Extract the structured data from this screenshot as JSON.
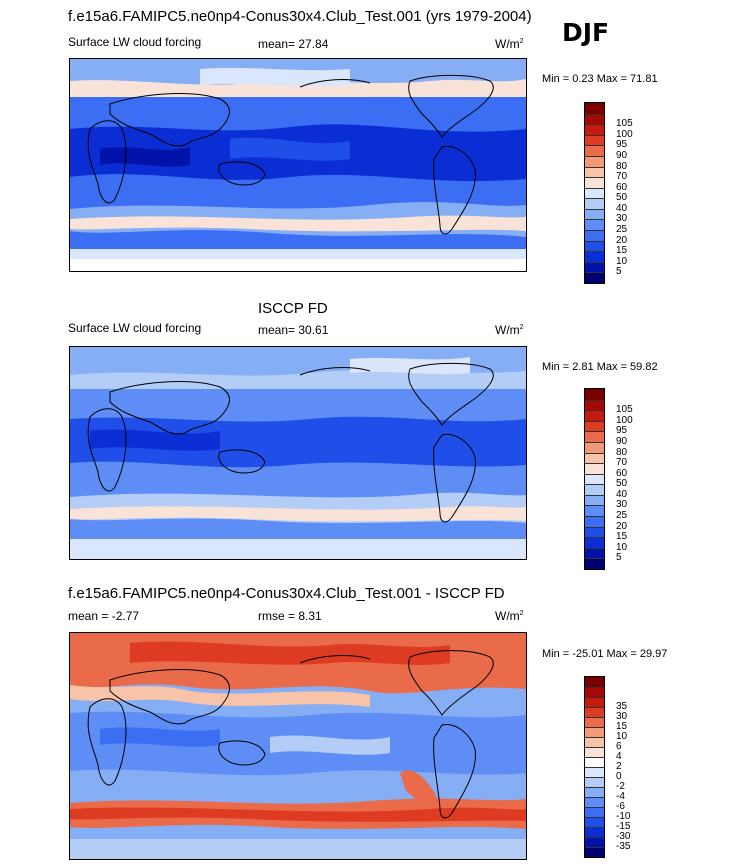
{
  "header": {
    "title": "f.e15a6.FAMIPC5.ne0np4-Conus30x4.Club_Test.001 (yrs 1979-2004)",
    "season": "DJF"
  },
  "panels": [
    {
      "subtitle": "",
      "var_label": "Surface LW cloud forcing",
      "stat1": "mean=  27.84",
      "stat2": "",
      "units_base": "W/m",
      "units_exp": "2",
      "minmax": "Min =   0.23 Max =  71.81",
      "colorbar_colors": [
        "#000070",
        "#0012a8",
        "#0a2ed4",
        "#1f4ee8",
        "#3b6ef2",
        "#5e8ef5",
        "#86aef5",
        "#b3cdf7",
        "#d9e6fb",
        "#f9e3d8",
        "#f7c3a9",
        "#f29a78",
        "#ea6b4a",
        "#dd3b22",
        "#c71a0f",
        "#a60806",
        "#7a0000"
      ],
      "colorbar_ticks": [
        "105",
        "100",
        "95",
        "90",
        "80",
        "70",
        "60",
        "50",
        "40",
        "30",
        "25",
        "20",
        "15",
        "10",
        "5"
      ]
    },
    {
      "subtitle": "ISCCP FD",
      "var_label": "Surface LW cloud forcing",
      "stat1": "mean=  30.61",
      "stat2": "",
      "units_base": "W/m",
      "units_exp": "2",
      "minmax": "Min =   2.81 Max =  59.82",
      "colorbar_colors": [
        "#000070",
        "#0012a8",
        "#0a2ed4",
        "#1f4ee8",
        "#3b6ef2",
        "#5e8ef5",
        "#86aef5",
        "#b3cdf7",
        "#d9e6fb",
        "#f9e3d8",
        "#f7c3a9",
        "#f29a78",
        "#ea6b4a",
        "#dd3b22",
        "#c71a0f",
        "#a60806",
        "#7a0000"
      ],
      "colorbar_ticks": [
        "105",
        "100",
        "95",
        "90",
        "80",
        "70",
        "60",
        "50",
        "40",
        "30",
        "25",
        "20",
        "15",
        "10",
        "5"
      ]
    },
    {
      "subtitle": "f.e15a6.FAMIPC5.ne0np4-Conus30x4.Club_Test.001 - ISCCP FD",
      "var_label": "mean =  -2.77",
      "stat1": "rmse =   8.31",
      "stat2": "",
      "units_base": "W/m",
      "units_exp": "2",
      "minmax": "Min = -25.01 Max =  29.97",
      "colorbar_colors": [
        "#000070",
        "#0012a8",
        "#0a2ed4",
        "#1f4ee8",
        "#3b6ef2",
        "#5e8ef5",
        "#86aef5",
        "#b3cdf7",
        "#d9e6fb",
        "#ffffff",
        "#f9e3d8",
        "#f7c3a9",
        "#f29a78",
        "#ea6b4a",
        "#dd3b22",
        "#c71a0f",
        "#a60806",
        "#7a0000"
      ],
      "colorbar_ticks": [
        "35",
        "30",
        "15",
        "10",
        "6",
        "4",
        "2",
        "0",
        "-2",
        "-4",
        "-6",
        "-10",
        "-15",
        "-30",
        "-35"
      ]
    }
  ]
}
